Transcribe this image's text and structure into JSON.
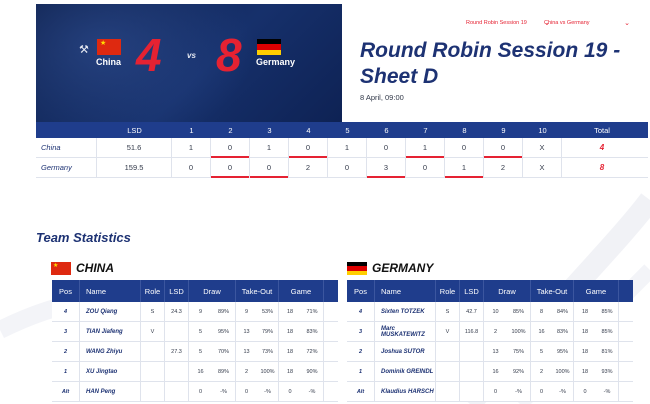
{
  "header": {
    "team_a": {
      "name": "China",
      "score": "4",
      "flag_colors": [
        "#de2910",
        "#ffde00"
      ]
    },
    "team_b": {
      "name": "Germany",
      "score": "8",
      "flag_colors": [
        "#000000",
        "#dd0000",
        "#ffce00"
      ]
    },
    "vs_label": "vs",
    "hammer_icon": "hammer-icon",
    "session_select": "Round Robin Session 19",
    "game_select": "China vs Germany",
    "title": "Round Robin Session 19 - Sheet D",
    "date": "8 April, 09:00"
  },
  "linescore": {
    "headers": [
      "",
      "LSD",
      "1",
      "2",
      "3",
      "4",
      "5",
      "6",
      "7",
      "8",
      "9",
      "10",
      "Total"
    ],
    "rows": [
      {
        "team": "China",
        "lsd": "51.6",
        "ends": [
          "1",
          "0",
          "1",
          "0",
          "1",
          "0",
          "1",
          "0",
          "0",
          "X"
        ],
        "total": "4",
        "hammer": [
          false,
          true,
          false,
          true,
          false,
          false,
          true,
          false,
          true,
          false
        ]
      },
      {
        "team": "Germany",
        "lsd": "159.5",
        "ends": [
          "0",
          "0",
          "0",
          "2",
          "0",
          "3",
          "0",
          "1",
          "2",
          "X"
        ],
        "total": "8",
        "hammer": [
          false,
          true,
          true,
          false,
          false,
          true,
          false,
          true,
          false,
          false
        ]
      }
    ]
  },
  "stats": {
    "section_title": "Team Statistics",
    "headers": {
      "pos": "Pos",
      "name": "Name",
      "role": "Role",
      "lsd": "LSD",
      "draw": "Draw",
      "takeout": "Take-Out",
      "game": "Game"
    },
    "teams": [
      {
        "name": "CHINA",
        "players": [
          {
            "pos": "4",
            "name": "ZOU Qiang",
            "role": "S",
            "lsd": "24.3",
            "draw": [
              "9",
              "89%"
            ],
            "takeout": [
              "9",
              "53%"
            ],
            "game": [
              "18",
              "71%"
            ]
          },
          {
            "pos": "3",
            "name": "TIAN Jiafeng",
            "role": "V",
            "lsd": "",
            "draw": [
              "5",
              "95%"
            ],
            "takeout": [
              "13",
              "79%"
            ],
            "game": [
              "18",
              "83%"
            ]
          },
          {
            "pos": "2",
            "name": "WANG Zhiyu",
            "role": "",
            "lsd": "27.3",
            "draw": [
              "5",
              "70%"
            ],
            "takeout": [
              "13",
              "73%"
            ],
            "game": [
              "18",
              "72%"
            ]
          },
          {
            "pos": "1",
            "name": "XU Jingtao",
            "role": "",
            "lsd": "",
            "draw": [
              "16",
              "89%"
            ],
            "takeout": [
              "2",
              "100%"
            ],
            "game": [
              "18",
              "90%"
            ]
          },
          {
            "pos": "Alt",
            "name": "HAN Peng",
            "role": "",
            "lsd": "",
            "draw": [
              "0",
              "-%"
            ],
            "takeout": [
              "0",
              "-%"
            ],
            "game": [
              "0",
              "-%"
            ]
          }
        ]
      },
      {
        "name": "GERMANY",
        "players": [
          {
            "pos": "4",
            "name": "Sixten TOTZEK",
            "role": "S",
            "lsd": "42.7",
            "draw": [
              "10",
              "85%"
            ],
            "takeout": [
              "8",
              "84%"
            ],
            "game": [
              "18",
              "85%"
            ]
          },
          {
            "pos": "3",
            "name": "Marc MUSKATEWITZ",
            "role": "V",
            "lsd": "116.8",
            "draw": [
              "2",
              "100%"
            ],
            "takeout": [
              "16",
              "83%"
            ],
            "game": [
              "18",
              "85%"
            ]
          },
          {
            "pos": "2",
            "name": "Joshua SUTOR",
            "role": "",
            "lsd": "",
            "draw": [
              "13",
              "75%"
            ],
            "takeout": [
              "5",
              "95%"
            ],
            "game": [
              "18",
              "81%"
            ]
          },
          {
            "pos": "1",
            "name": "Dominik GREINDL",
            "role": "",
            "lsd": "",
            "draw": [
              "16",
              "92%"
            ],
            "takeout": [
              "2",
              "100%"
            ],
            "game": [
              "18",
              "93%"
            ]
          },
          {
            "pos": "Alt",
            "name": "Klaudius HARSCH",
            "role": "",
            "lsd": "",
            "draw": [
              "0",
              "-%"
            ],
            "takeout": [
              "0",
              "-%"
            ],
            "game": [
              "0",
              "-%"
            ]
          }
        ]
      }
    ]
  },
  "colors": {
    "navy": "#1f3d8c",
    "accent_red": "#e52232",
    "title_blue": "#1d3273"
  }
}
